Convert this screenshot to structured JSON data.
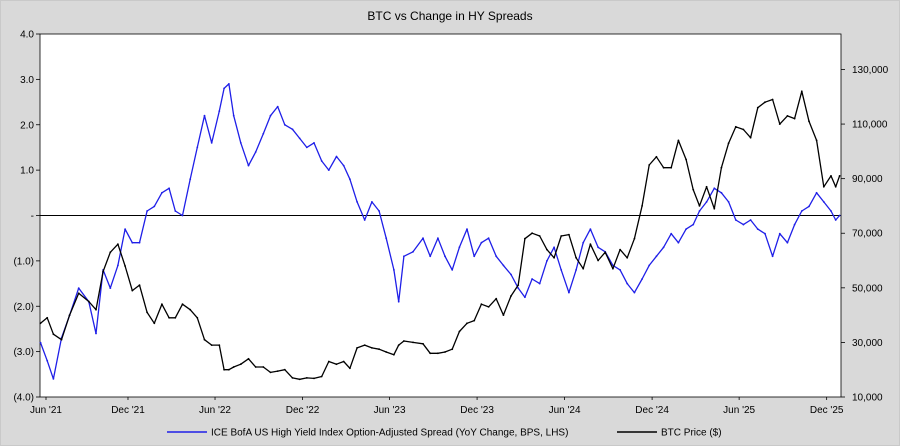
{
  "chart_data": {
    "type": "line",
    "title": "BTC vs Change in HY Spreads",
    "x_tick_labels": [
      "Jun '21",
      "Dec '21",
      "Jun '22",
      "Dec '22",
      "Jun '23",
      "Dec '23",
      "Jun '24",
      "Dec '24",
      "Jun '25",
      "Dec '25"
    ],
    "y_left": {
      "ticks": [
        4.0,
        3.0,
        2.0,
        1.0,
        0,
        -1.0,
        -2.0,
        -3.0,
        -4.0
      ],
      "tick_labels": [
        "4.0",
        "3.0",
        "2.0",
        "1.0",
        "-",
        "(1.0)",
        "(2.0)",
        "(3.0)",
        "(4.0)"
      ],
      "ylim": [
        -4.0,
        4.0
      ]
    },
    "y_right": {
      "ticks": [
        130000,
        110000,
        90000,
        70000,
        50000,
        30000,
        10000
      ],
      "tick_labels": [
        "130,000",
        "110,000",
        "90,000",
        "70,000",
        "50,000",
        "30,000",
        "10,000"
      ],
      "ylim": [
        10000,
        143000
      ]
    },
    "grid": false,
    "legend_position": "bottom",
    "series": [
      {
        "name": "ICE BofA US High Yield Index Option-Adjusted Spread (YoY Change, BPS, LHS)",
        "axis": "left",
        "color": "#1f1fe8",
        "points": [
          [
            "2021-06-01",
            -2.8
          ],
          [
            "2021-06-15",
            -3.2
          ],
          [
            "2021-06-28",
            -3.6
          ],
          [
            "2021-07-15",
            -2.7
          ],
          [
            "2021-08-01",
            -2.2
          ],
          [
            "2021-08-20",
            -1.6
          ],
          [
            "2021-09-10",
            -1.9
          ],
          [
            "2021-09-25",
            -2.6
          ],
          [
            "2021-10-10",
            -1.2
          ],
          [
            "2021-10-25",
            -1.6
          ],
          [
            "2021-11-10",
            -1.1
          ],
          [
            "2021-11-25",
            -0.3
          ],
          [
            "2021-12-10",
            -0.6
          ],
          [
            "2021-12-25",
            -0.6
          ],
          [
            "2022-01-10",
            0.1
          ],
          [
            "2022-01-25",
            0.2
          ],
          [
            "2022-02-10",
            0.5
          ],
          [
            "2022-02-25",
            0.6
          ],
          [
            "2022-03-10",
            0.1
          ],
          [
            "2022-03-25",
            0.0
          ],
          [
            "2022-04-10",
            0.8
          ],
          [
            "2022-04-25",
            1.5
          ],
          [
            "2022-05-10",
            2.2
          ],
          [
            "2022-05-25",
            1.6
          ],
          [
            "2022-06-10",
            2.3
          ],
          [
            "2022-06-20",
            2.8
          ],
          [
            "2022-06-30",
            2.9
          ],
          [
            "2022-07-10",
            2.2
          ],
          [
            "2022-07-25",
            1.6
          ],
          [
            "2022-08-10",
            1.1
          ],
          [
            "2022-08-25",
            1.4
          ],
          [
            "2022-09-10",
            1.8
          ],
          [
            "2022-09-25",
            2.2
          ],
          [
            "2022-10-10",
            2.4
          ],
          [
            "2022-10-25",
            2.0
          ],
          [
            "2022-11-10",
            1.9
          ],
          [
            "2022-11-25",
            1.7
          ],
          [
            "2022-12-10",
            1.5
          ],
          [
            "2022-12-25",
            1.6
          ],
          [
            "2023-01-10",
            1.2
          ],
          [
            "2023-01-25",
            1.0
          ],
          [
            "2023-02-10",
            1.3
          ],
          [
            "2023-02-25",
            1.1
          ],
          [
            "2023-03-10",
            0.8
          ],
          [
            "2023-03-25",
            0.3
          ],
          [
            "2023-04-10",
            -0.1
          ],
          [
            "2023-04-25",
            0.3
          ],
          [
            "2023-05-10",
            0.1
          ],
          [
            "2023-05-25",
            -0.5
          ],
          [
            "2023-06-10",
            -1.2
          ],
          [
            "2023-06-20",
            -1.9
          ],
          [
            "2023-07-01",
            -0.9
          ],
          [
            "2023-07-20",
            -0.8
          ],
          [
            "2023-08-10",
            -0.5
          ],
          [
            "2023-08-25",
            -0.9
          ],
          [
            "2023-09-10",
            -0.5
          ],
          [
            "2023-09-25",
            -0.9
          ],
          [
            "2023-10-10",
            -1.2
          ],
          [
            "2023-10-25",
            -0.7
          ],
          [
            "2023-11-10",
            -0.3
          ],
          [
            "2023-11-25",
            -0.9
          ],
          [
            "2023-12-10",
            -0.6
          ],
          [
            "2023-12-25",
            -0.5
          ],
          [
            "2024-01-10",
            -0.9
          ],
          [
            "2024-01-25",
            -1.1
          ],
          [
            "2024-02-10",
            -1.3
          ],
          [
            "2024-02-25",
            -1.6
          ],
          [
            "2024-03-10",
            -1.8
          ],
          [
            "2024-03-25",
            -1.4
          ],
          [
            "2024-04-10",
            -1.5
          ],
          [
            "2024-04-25",
            -1.0
          ],
          [
            "2024-05-10",
            -0.7
          ],
          [
            "2024-05-25",
            -1.2
          ],
          [
            "2024-06-10",
            -1.7
          ],
          [
            "2024-06-25",
            -1.2
          ],
          [
            "2024-07-10",
            -0.6
          ],
          [
            "2024-07-25",
            -0.3
          ],
          [
            "2024-08-10",
            -0.7
          ],
          [
            "2024-08-25",
            -0.8
          ],
          [
            "2024-09-10",
            -1.1
          ],
          [
            "2024-09-25",
            -1.2
          ],
          [
            "2024-10-10",
            -1.5
          ],
          [
            "2024-10-25",
            -1.7
          ],
          [
            "2024-11-10",
            -1.4
          ],
          [
            "2024-11-25",
            -1.1
          ],
          [
            "2024-12-10",
            -0.9
          ],
          [
            "2024-12-25",
            -0.7
          ],
          [
            "2025-01-10",
            -0.4
          ],
          [
            "2025-01-25",
            -0.6
          ],
          [
            "2025-02-10",
            -0.3
          ],
          [
            "2025-02-25",
            -0.2
          ],
          [
            "2025-03-10",
            0.1
          ],
          [
            "2025-03-25",
            0.3
          ],
          [
            "2025-04-10",
            0.6
          ],
          [
            "2025-04-25",
            0.5
          ],
          [
            "2025-05-10",
            0.3
          ],
          [
            "2025-05-25",
            -0.1
          ],
          [
            "2025-06-10",
            -0.2
          ],
          [
            "2025-06-25",
            -0.1
          ],
          [
            "2025-07-10",
            -0.3
          ],
          [
            "2025-07-25",
            -0.4
          ],
          [
            "2025-08-10",
            -0.9
          ],
          [
            "2025-08-25",
            -0.4
          ],
          [
            "2025-09-10",
            -0.6
          ],
          [
            "2025-09-25",
            -0.2
          ],
          [
            "2025-10-10",
            0.1
          ],
          [
            "2025-10-25",
            0.2
          ],
          [
            "2025-11-10",
            0.5
          ],
          [
            "2025-11-25",
            0.3
          ],
          [
            "2025-12-10",
            0.1
          ],
          [
            "2025-12-20",
            -0.1
          ],
          [
            "2025-12-28",
            0.0
          ]
        ]
      },
      {
        "name": "BTC Price ($)",
        "axis": "right",
        "color": "#000000",
        "points": [
          [
            "2021-06-01",
            37000
          ],
          [
            "2021-06-15",
            39000
          ],
          [
            "2021-06-28",
            33000
          ],
          [
            "2021-07-15",
            31000
          ],
          [
            "2021-08-01",
            40000
          ],
          [
            "2021-08-20",
            48000
          ],
          [
            "2021-09-10",
            45000
          ],
          [
            "2021-09-25",
            42000
          ],
          [
            "2021-10-10",
            56000
          ],
          [
            "2021-10-25",
            63000
          ],
          [
            "2021-11-10",
            66000
          ],
          [
            "2021-11-25",
            58000
          ],
          [
            "2021-12-10",
            49000
          ],
          [
            "2021-12-25",
            51000
          ],
          [
            "2022-01-10",
            41000
          ],
          [
            "2022-01-25",
            37000
          ],
          [
            "2022-02-10",
            44000
          ],
          [
            "2022-02-25",
            39000
          ],
          [
            "2022-03-10",
            39000
          ],
          [
            "2022-03-25",
            44000
          ],
          [
            "2022-04-10",
            42000
          ],
          [
            "2022-04-25",
            39000
          ],
          [
            "2022-05-10",
            31000
          ],
          [
            "2022-05-25",
            29000
          ],
          [
            "2022-06-10",
            29000
          ],
          [
            "2022-06-20",
            20000
          ],
          [
            "2022-06-30",
            20000
          ],
          [
            "2022-07-10",
            21000
          ],
          [
            "2022-07-25",
            22000
          ],
          [
            "2022-08-10",
            24000
          ],
          [
            "2022-08-25",
            21000
          ],
          [
            "2022-09-10",
            21000
          ],
          [
            "2022-09-25",
            19000
          ],
          [
            "2022-10-10",
            19500
          ],
          [
            "2022-10-25",
            20000
          ],
          [
            "2022-11-10",
            17000
          ],
          [
            "2022-11-25",
            16500
          ],
          [
            "2022-12-10",
            17000
          ],
          [
            "2022-12-25",
            16800
          ],
          [
            "2023-01-10",
            17500
          ],
          [
            "2023-01-25",
            23000
          ],
          [
            "2023-02-10",
            22000
          ],
          [
            "2023-02-25",
            23000
          ],
          [
            "2023-03-10",
            20500
          ],
          [
            "2023-03-25",
            28000
          ],
          [
            "2023-04-10",
            29000
          ],
          [
            "2023-04-25",
            28000
          ],
          [
            "2023-05-10",
            27500
          ],
          [
            "2023-05-25",
            26500
          ],
          [
            "2023-06-10",
            25500
          ],
          [
            "2023-06-20",
            29000
          ],
          [
            "2023-07-01",
            30500
          ],
          [
            "2023-07-20",
            30000
          ],
          [
            "2023-08-10",
            29500
          ],
          [
            "2023-08-25",
            26000
          ],
          [
            "2023-09-10",
            26000
          ],
          [
            "2023-09-25",
            26500
          ],
          [
            "2023-10-10",
            27500
          ],
          [
            "2023-10-25",
            34000
          ],
          [
            "2023-11-10",
            37000
          ],
          [
            "2023-11-25",
            38000
          ],
          [
            "2023-12-10",
            44000
          ],
          [
            "2023-12-25",
            43000
          ],
          [
            "2024-01-10",
            46000
          ],
          [
            "2024-01-25",
            40000
          ],
          [
            "2024-02-10",
            47000
          ],
          [
            "2024-02-25",
            51000
          ],
          [
            "2024-03-10",
            68000
          ],
          [
            "2024-03-25",
            70000
          ],
          [
            "2024-04-10",
            69000
          ],
          [
            "2024-04-25",
            64000
          ],
          [
            "2024-05-10",
            61000
          ],
          [
            "2024-05-25",
            69000
          ],
          [
            "2024-06-10",
            69500
          ],
          [
            "2024-06-25",
            61000
          ],
          [
            "2024-07-10",
            57000
          ],
          [
            "2024-07-25",
            66000
          ],
          [
            "2024-08-10",
            60000
          ],
          [
            "2024-08-25",
            63000
          ],
          [
            "2024-09-10",
            57000
          ],
          [
            "2024-09-25",
            64000
          ],
          [
            "2024-10-10",
            61000
          ],
          [
            "2024-10-25",
            68000
          ],
          [
            "2024-11-10",
            80000
          ],
          [
            "2024-11-25",
            95000
          ],
          [
            "2024-12-10",
            98000
          ],
          [
            "2024-12-25",
            94000
          ],
          [
            "2025-01-10",
            94000
          ],
          [
            "2025-01-25",
            104000
          ],
          [
            "2025-02-10",
            97000
          ],
          [
            "2025-02-25",
            86000
          ],
          [
            "2025-03-10",
            80000
          ],
          [
            "2025-03-25",
            87000
          ],
          [
            "2025-04-10",
            79000
          ],
          [
            "2025-04-25",
            94000
          ],
          [
            "2025-05-10",
            103000
          ],
          [
            "2025-05-25",
            109000
          ],
          [
            "2025-06-10",
            108000
          ],
          [
            "2025-06-25",
            105000
          ],
          [
            "2025-07-10",
            116000
          ],
          [
            "2025-07-25",
            118000
          ],
          [
            "2025-08-10",
            119000
          ],
          [
            "2025-08-25",
            110000
          ],
          [
            "2025-09-10",
            113000
          ],
          [
            "2025-09-25",
            112000
          ],
          [
            "2025-10-10",
            122000
          ],
          [
            "2025-10-25",
            111000
          ],
          [
            "2025-11-10",
            104000
          ],
          [
            "2025-11-25",
            87000
          ],
          [
            "2025-12-10",
            91000
          ],
          [
            "2025-12-20",
            87000
          ],
          [
            "2025-12-28",
            91000
          ]
        ]
      }
    ]
  }
}
